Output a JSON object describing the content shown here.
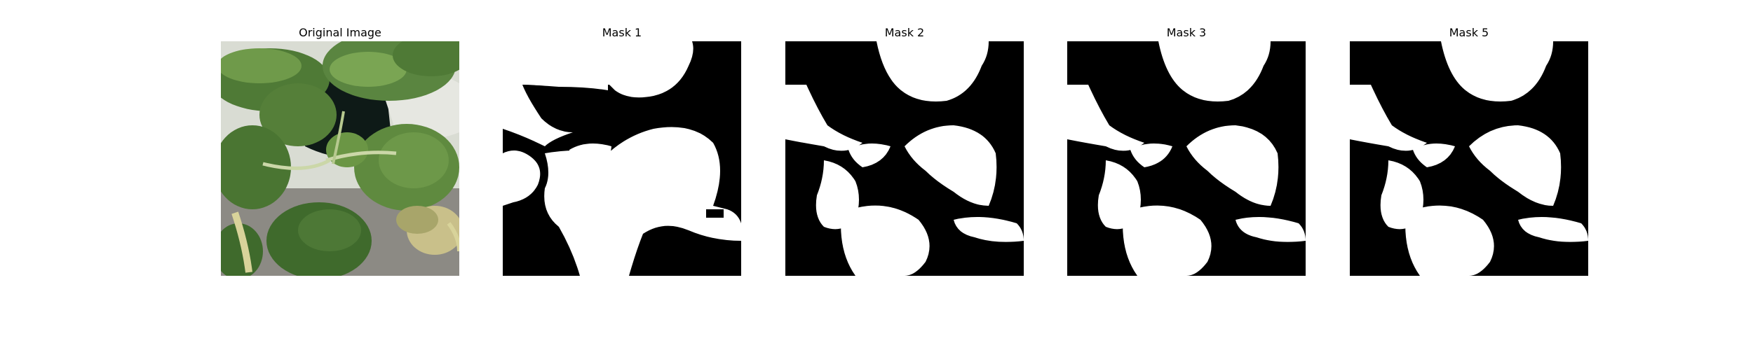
{
  "figure": {
    "panels": [
      {
        "title": "Original Image",
        "kind": "photo"
      },
      {
        "title": "Mask 1",
        "kind": "mask"
      },
      {
        "title": "Mask 2",
        "kind": "mask"
      },
      {
        "title": "Mask 3",
        "kind": "mask"
      },
      {
        "title": "Mask 5",
        "kind": "mask"
      }
    ]
  },
  "colors": {
    "background": "#ffffff",
    "mask_foreground": "#ffffff",
    "mask_background": "#000000",
    "leaf_dark": "#3f6a2c",
    "leaf_mid": "#5f8a3f",
    "leaf_light": "#9bbf6a",
    "leaf_yellow": "#d8d39a",
    "pot_dark": "#0e1a17",
    "soil_gray": "#8c8a84"
  }
}
